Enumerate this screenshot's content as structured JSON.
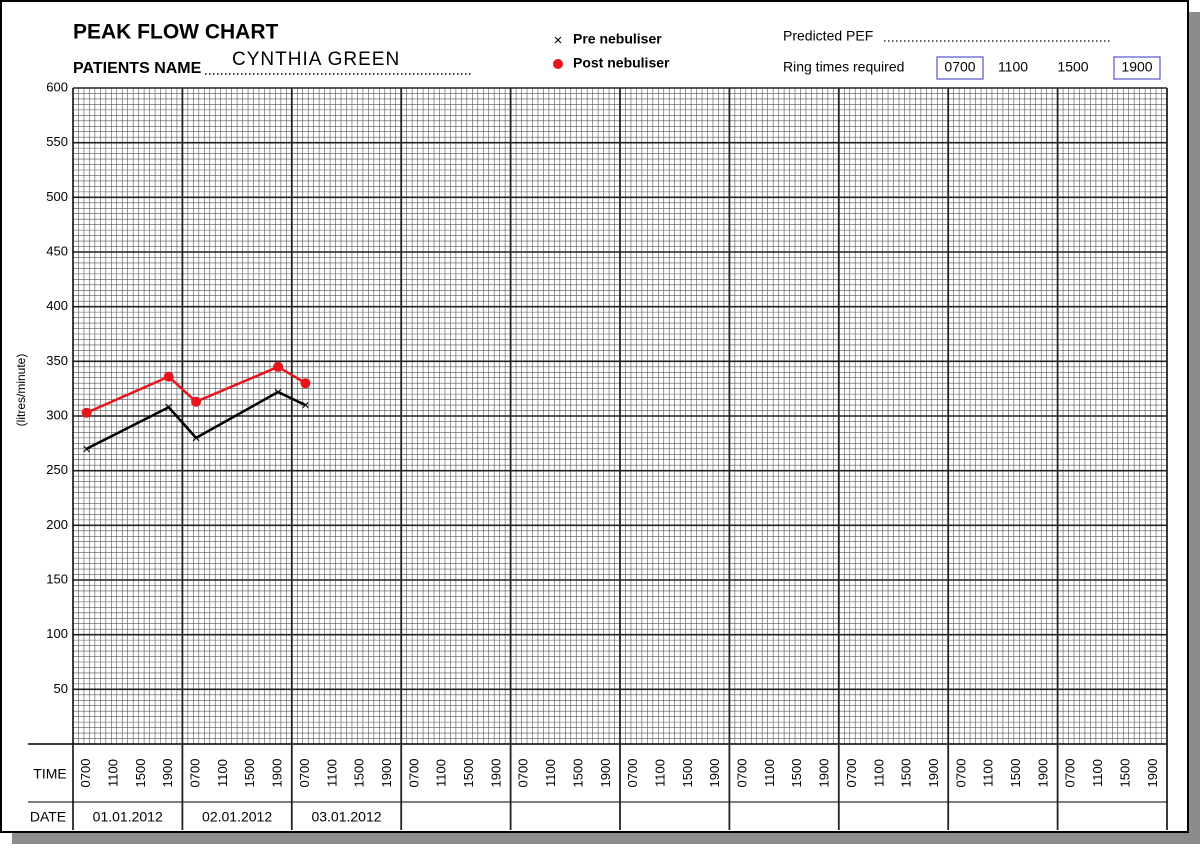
{
  "chart_data": {
    "type": "line",
    "title": "PEAK FLOW CHART",
    "patient_label": "PATIENTS NAME",
    "patient_name": "CYNTHIA GREEN",
    "predicted_label": "Predicted PEF",
    "ring_label": "Ring times required",
    "ring_times": [
      "0700",
      "1100",
      "1500",
      "1900"
    ],
    "ring_boxed": [
      true,
      false,
      false,
      true
    ],
    "y_label": "(litres/minute)",
    "time_row_label": "TIME",
    "date_row_label": "DATE",
    "categories": [
      "0700",
      "1100",
      "1500",
      "1900",
      "0700",
      "1100",
      "1500",
      "1900",
      "0700",
      "1100",
      "1500",
      "1900",
      "0700",
      "1100",
      "1500",
      "1900",
      "0700",
      "1100",
      "1500",
      "1900",
      "0700",
      "1100",
      "1500",
      "1900",
      "0700",
      "1100",
      "1500",
      "1900",
      "0700",
      "1100",
      "1500",
      "1900",
      "0700",
      "1100",
      "1500",
      "1900",
      "0700",
      "1100",
      "1500",
      "1900"
    ],
    "dates": [
      "01.01.2012",
      "02.01.2012",
      "03.01.2012",
      null,
      null,
      null,
      null,
      null,
      null,
      null
    ],
    "series": [
      {
        "name": "Pre nebuliser",
        "marker": "X",
        "color": "#000000",
        "values": [
          270,
          null,
          null,
          308,
          280,
          null,
          null,
          322,
          310,
          null,
          null,
          null,
          null,
          null,
          null,
          null,
          null,
          null,
          null,
          null,
          null,
          null,
          null,
          null,
          null,
          null,
          null,
          null,
          null,
          null,
          null,
          null,
          null,
          null,
          null,
          null,
          null,
          null,
          null,
          null
        ]
      },
      {
        "name": "Post nebuliser",
        "marker": "dot",
        "color": "#e8141b",
        "values": [
          303,
          null,
          null,
          336,
          313,
          null,
          null,
          345,
          330,
          null,
          null,
          null,
          null,
          null,
          null,
          null,
          null,
          null,
          null,
          null,
          null,
          null,
          null,
          null,
          null,
          null,
          null,
          null,
          null,
          null,
          null,
          null,
          null,
          null,
          null,
          null,
          null,
          null,
          null,
          null
        ]
      }
    ],
    "ylim": [
      0,
      600
    ],
    "yticks": [
      50,
      100,
      150,
      200,
      250,
      300,
      350,
      400,
      450,
      500,
      550,
      600
    ],
    "grid": true
  }
}
